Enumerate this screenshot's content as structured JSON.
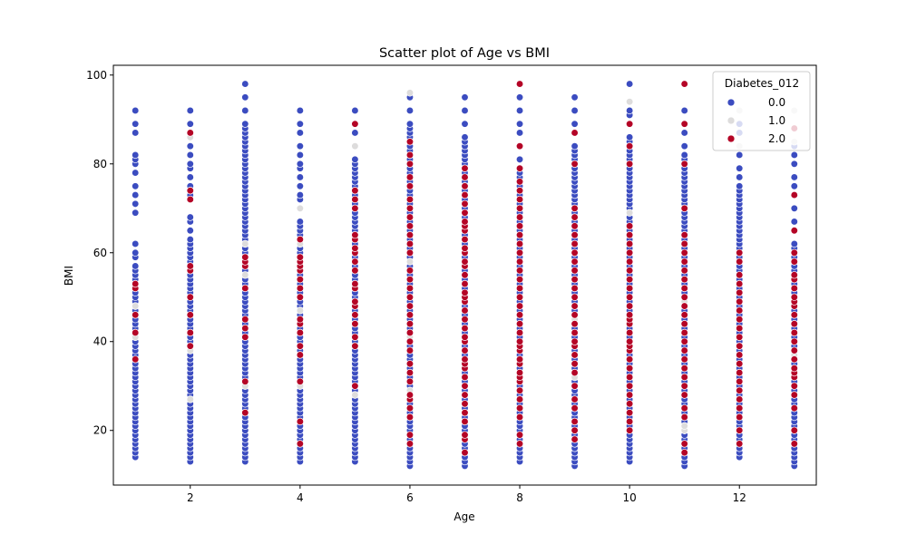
{
  "chart_data": {
    "type": "scatter",
    "title": "Scatter plot of Age vs BMI",
    "xlabel": "Age",
    "ylabel": "BMI",
    "xlim": [
      0.6,
      13.4
    ],
    "ylim": [
      7.7,
      102.2
    ],
    "x_ticks": [
      2,
      4,
      6,
      8,
      10,
      12
    ],
    "y_ticks": [
      20,
      40,
      60,
      80,
      100
    ],
    "grid": false,
    "legend": {
      "title": "Diabetes_012",
      "placement": "top-right",
      "entries": [
        {
          "label": "0.0",
          "color": "#3b4cc0"
        },
        {
          "label": "1.0",
          "color": "#dddcdc"
        },
        {
          "label": "2.0",
          "color": "#b40426"
        }
      ]
    },
    "series": [
      {
        "name": "0.0",
        "color": "#3b4cc0",
        "points": [
          {
            "x": 1,
            "ranges": [
              [
                14,
                57
              ]
            ],
            "extra": [
              59,
              60,
              62,
              69,
              71,
              73,
              75,
              78,
              80,
              81,
              82,
              87,
              89,
              92
            ]
          },
          {
            "x": 2,
            "ranges": [
              [
                13,
                63
              ]
            ],
            "extra": [
              65,
              67,
              68,
              72,
              73,
              74,
              75,
              77,
              79,
              80,
              82,
              84,
              87,
              89,
              92
            ]
          },
          {
            "x": 3,
            "ranges": [
              [
                13,
                89
              ]
            ],
            "extra": [
              92,
              95,
              98
            ]
          },
          {
            "x": 4,
            "ranges": [
              [
                13,
                67
              ]
            ],
            "extra": [
              70,
              72,
              73,
              75,
              77,
              79,
              80,
              82,
              84,
              87,
              89,
              92
            ]
          },
          {
            "x": 5,
            "ranges": [
              [
                13,
                81
              ]
            ],
            "extra": [
              84,
              87,
              89,
              92
            ]
          },
          {
            "x": 6,
            "ranges": [
              [
                12,
                89
              ]
            ],
            "extra": [
              92,
              95
            ]
          },
          {
            "x": 7,
            "ranges": [
              [
                12,
                86
              ]
            ],
            "extra": [
              89,
              92,
              95
            ]
          },
          {
            "x": 8,
            "ranges": [
              [
                13,
                79
              ]
            ],
            "extra": [
              81,
              84,
              87,
              89,
              92,
              95
            ]
          },
          {
            "x": 9,
            "ranges": [
              [
                12,
                84
              ]
            ],
            "extra": [
              87,
              89,
              92,
              95
            ]
          },
          {
            "x": 10,
            "ranges": [
              [
                13,
                86
              ]
            ],
            "extra": [
              89,
              91,
              92,
              98
            ]
          },
          {
            "x": 11,
            "ranges": [
              [
                12,
                82
              ]
            ],
            "extra": [
              84,
              87,
              89,
              92
            ]
          },
          {
            "x": 12,
            "ranges": [
              [
                14,
                75
              ]
            ],
            "extra": [
              77,
              79,
              82,
              87,
              89,
              92
            ]
          },
          {
            "x": 13,
            "ranges": [
              [
                12,
                62
              ]
            ],
            "extra": [
              65,
              67,
              70,
              73,
              75,
              77,
              80,
              82,
              84
            ]
          }
        ]
      },
      {
        "name": "1.0",
        "color": "#dddcdc",
        "points": [
          {
            "x": 1,
            "values": [
              41,
              48
            ]
          },
          {
            "x": 2,
            "values": [
              27,
              38,
              56,
              86
            ]
          },
          {
            "x": 3,
            "values": [
              30,
              55,
              62
            ]
          },
          {
            "x": 4,
            "values": [
              30,
              47,
              62,
              70
            ]
          },
          {
            "x": 5,
            "values": [
              28,
              49,
              58,
              84
            ]
          },
          {
            "x": 6,
            "values": [
              23,
              29,
              41,
              50,
              58,
              96
            ]
          },
          {
            "x": 7,
            "values": [
              28,
              41,
              75
            ]
          },
          {
            "x": 8,
            "values": [
              27,
              36,
              72
            ]
          },
          {
            "x": 9,
            "values": [
              32,
              45,
              60
            ]
          },
          {
            "x": 10,
            "values": [
              36,
              56,
              69,
              94
            ]
          },
          {
            "x": 11,
            "values": [
              20,
              21,
              49
            ]
          },
          {
            "x": 12,
            "values": [
              27,
              39,
              84,
              92
            ]
          },
          {
            "x": 13,
            "values": [
              37,
              85,
              92
            ]
          }
        ]
      },
      {
        "name": "2.0",
        "color": "#b40426",
        "points": [
          {
            "x": 1,
            "values": [
              36,
              42,
              46,
              52,
              53
            ]
          },
          {
            "x": 2,
            "values": [
              39,
              42,
              46,
              50,
              56,
              57,
              72,
              74,
              87
            ]
          },
          {
            "x": 3,
            "values": [
              24,
              31,
              41,
              43,
              45,
              52,
              57,
              58,
              59
            ]
          },
          {
            "x": 4,
            "values": [
              17,
              22,
              31,
              37,
              39,
              42,
              44,
              45,
              50,
              52,
              54,
              56,
              57,
              58,
              59,
              63
            ]
          },
          {
            "x": 5,
            "values": [
              30,
              39,
              41,
              44,
              46,
              48,
              49,
              52,
              53,
              56,
              58,
              60,
              61,
              63,
              64,
              70,
              72,
              74,
              89
            ]
          },
          {
            "x": 6,
            "values": [
              17,
              19,
              23,
              25,
              27,
              28,
              31,
              33,
              35,
              38,
              40,
              42,
              44,
              46,
              48,
              50,
              52,
              54,
              56,
              60,
              62,
              64,
              66,
              68,
              70,
              72,
              75,
              77,
              80,
              82,
              85
            ]
          },
          {
            "x": 7,
            "values": [
              15,
              18,
              19,
              22,
              24,
              26,
              28,
              30,
              32,
              34,
              35,
              36,
              38,
              40,
              41,
              43,
              45,
              47,
              49,
              50,
              51,
              53,
              55,
              57,
              58,
              60,
              61,
              63,
              65,
              66,
              67,
              69,
              71,
              73,
              75,
              77,
              79
            ]
          },
          {
            "x": 8,
            "values": [
              17,
              19,
              23,
              25,
              27,
              29,
              31,
              32,
              33,
              35,
              36,
              38,
              39,
              40,
              42,
              44,
              46,
              48,
              50,
              52,
              54,
              56,
              58,
              60,
              62,
              64,
              66,
              68,
              70,
              72,
              74,
              76,
              79,
              84,
              98
            ]
          },
          {
            "x": 9,
            "values": [
              18,
              20,
              22,
              25,
              27,
              30,
              33,
              35,
              37,
              39,
              40,
              42,
              44,
              46,
              48,
              50,
              52,
              54,
              56,
              58,
              60,
              62,
              64,
              66,
              68,
              70,
              80,
              87
            ]
          },
          {
            "x": 10,
            "values": [
              20,
              22,
              24,
              26,
              28,
              30,
              32,
              34,
              36,
              38,
              39,
              40,
              42,
              44,
              45,
              46,
              48,
              50,
              52,
              54,
              56,
              58,
              60,
              62,
              64,
              66,
              80,
              84,
              89
            ]
          },
          {
            "x": 11,
            "values": [
              15,
              17,
              23,
              25,
              28,
              30,
              32,
              34,
              36,
              38,
              40,
              42,
              44,
              46,
              48,
              50,
              52,
              54,
              56,
              58,
              60,
              62,
              64,
              70,
              80,
              89,
              98
            ]
          },
          {
            "x": 12,
            "values": [
              17,
              20,
              23,
              25,
              27,
              29,
              31,
              33,
              35,
              37,
              39,
              41,
              43,
              45,
              47,
              49,
              51,
              53,
              55,
              58,
              60
            ]
          },
          {
            "x": 13,
            "values": [
              17,
              20,
              25,
              28,
              30,
              32,
              33,
              34,
              36,
              38,
              40,
              42,
              44,
              46,
              48,
              49,
              50,
              52,
              54,
              55,
              58,
              60,
              65,
              73,
              88
            ]
          }
        ]
      }
    ]
  }
}
